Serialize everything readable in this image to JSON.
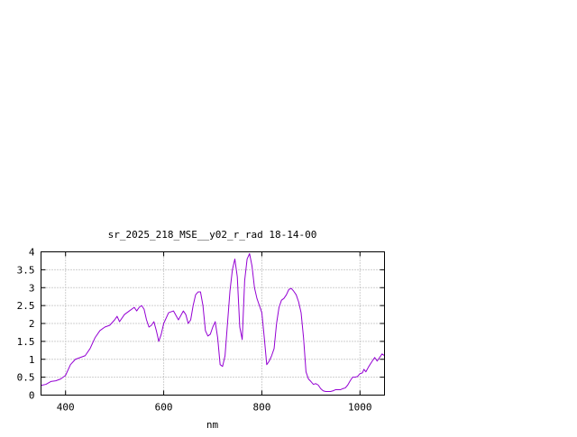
{
  "chart_data": {
    "type": "line",
    "title": "sr_2025_218_MSE__y02_r_rad 18-14-00",
    "xlabel": "nm",
    "ylabel": "",
    "xlim": [
      350,
      1050
    ],
    "ylim": [
      0,
      4
    ],
    "x_ticks": [
      400,
      600,
      800,
      1000
    ],
    "y_ticks": [
      0,
      0.5,
      1,
      1.5,
      2,
      2.5,
      3,
      3.5,
      4
    ],
    "x_tick_labels": [
      "400",
      "600",
      "800",
      "1000"
    ],
    "y_tick_labels": [
      "0",
      "0.5",
      "1",
      "1.5",
      "2",
      "2.5",
      "3",
      "3.5",
      "4"
    ],
    "grid": true,
    "legend": "none",
    "series": [
      {
        "color": "#9400d3",
        "points": [
          [
            350,
            0.27
          ],
          [
            360,
            0.3
          ],
          [
            370,
            0.38
          ],
          [
            380,
            0.4
          ],
          [
            390,
            0.45
          ],
          [
            400,
            0.55
          ],
          [
            410,
            0.85
          ],
          [
            420,
            1.0
          ],
          [
            430,
            1.05
          ],
          [
            440,
            1.1
          ],
          [
            450,
            1.3
          ],
          [
            460,
            1.6
          ],
          [
            470,
            1.8
          ],
          [
            480,
            1.9
          ],
          [
            490,
            1.95
          ],
          [
            500,
            2.1
          ],
          [
            505,
            2.2
          ],
          [
            510,
            2.05
          ],
          [
            520,
            2.25
          ],
          [
            530,
            2.35
          ],
          [
            540,
            2.45
          ],
          [
            545,
            2.35
          ],
          [
            550,
            2.45
          ],
          [
            555,
            2.5
          ],
          [
            560,
            2.4
          ],
          [
            565,
            2.1
          ],
          [
            570,
            1.9
          ],
          [
            575,
            1.95
          ],
          [
            580,
            2.05
          ],
          [
            585,
            1.8
          ],
          [
            590,
            1.5
          ],
          [
            595,
            1.7
          ],
          [
            600,
            2.0
          ],
          [
            610,
            2.3
          ],
          [
            620,
            2.35
          ],
          [
            630,
            2.1
          ],
          [
            640,
            2.35
          ],
          [
            645,
            2.25
          ],
          [
            650,
            2.0
          ],
          [
            655,
            2.1
          ],
          [
            660,
            2.5
          ],
          [
            665,
            2.8
          ],
          [
            670,
            2.88
          ],
          [
            675,
            2.88
          ],
          [
            680,
            2.5
          ],
          [
            685,
            1.8
          ],
          [
            690,
            1.65
          ],
          [
            695,
            1.7
          ],
          [
            700,
            1.9
          ],
          [
            705,
            2.05
          ],
          [
            710,
            1.6
          ],
          [
            715,
            0.85
          ],
          [
            720,
            0.8
          ],
          [
            725,
            1.1
          ],
          [
            730,
            2.0
          ],
          [
            735,
            2.9
          ],
          [
            740,
            3.5
          ],
          [
            745,
            3.8
          ],
          [
            750,
            3.3
          ],
          [
            755,
            1.9
          ],
          [
            760,
            1.55
          ],
          [
            765,
            3.2
          ],
          [
            770,
            3.8
          ],
          [
            775,
            3.95
          ],
          [
            780,
            3.6
          ],
          [
            785,
            3.0
          ],
          [
            790,
            2.7
          ],
          [
            795,
            2.5
          ],
          [
            800,
            2.3
          ],
          [
            805,
            1.6
          ],
          [
            810,
            0.85
          ],
          [
            815,
            0.95
          ],
          [
            820,
            1.1
          ],
          [
            825,
            1.3
          ],
          [
            830,
            2.0
          ],
          [
            835,
            2.45
          ],
          [
            840,
            2.65
          ],
          [
            845,
            2.7
          ],
          [
            850,
            2.8
          ],
          [
            855,
            2.95
          ],
          [
            860,
            2.98
          ],
          [
            865,
            2.9
          ],
          [
            870,
            2.8
          ],
          [
            875,
            2.6
          ],
          [
            880,
            2.3
          ],
          [
            885,
            1.6
          ],
          [
            890,
            0.65
          ],
          [
            895,
            0.45
          ],
          [
            900,
            0.38
          ],
          [
            905,
            0.3
          ],
          [
            910,
            0.32
          ],
          [
            915,
            0.28
          ],
          [
            920,
            0.18
          ],
          [
            925,
            0.12
          ],
          [
            930,
            0.1
          ],
          [
            940,
            0.1
          ],
          [
            945,
            0.12
          ],
          [
            950,
            0.15
          ],
          [
            960,
            0.15
          ],
          [
            965,
            0.18
          ],
          [
            970,
            0.2
          ],
          [
            975,
            0.28
          ],
          [
            980,
            0.4
          ],
          [
            985,
            0.5
          ],
          [
            990,
            0.5
          ],
          [
            995,
            0.52
          ],
          [
            1000,
            0.6
          ],
          [
            1005,
            0.62
          ],
          [
            1008,
            0.72
          ],
          [
            1012,
            0.65
          ],
          [
            1018,
            0.8
          ],
          [
            1025,
            0.95
          ],
          [
            1030,
            1.05
          ],
          [
            1035,
            0.95
          ],
          [
            1040,
            1.05
          ],
          [
            1045,
            1.15
          ],
          [
            1050,
            1.1
          ]
        ]
      }
    ]
  }
}
